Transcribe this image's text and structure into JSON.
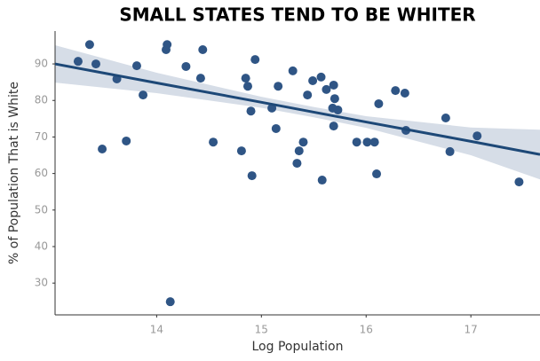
{
  "chart_data": {
    "type": "scatter",
    "title": "SMALL STATES TEND TO BE WHITER",
    "x_label": "Log Population",
    "y_label": "% of Population That is White",
    "xlim": [
      13.03,
      17.66
    ],
    "ylim": [
      21.3,
      99
    ],
    "xticks": [
      14,
      15,
      16,
      17
    ],
    "yticks": [
      30,
      40,
      50,
      60,
      70,
      80,
      90
    ],
    "color": "#2f5585",
    "x": [
      13.25,
      13.36,
      13.42,
      13.48,
      13.62,
      13.71,
      13.81,
      13.87,
      14.09,
      14.1,
      14.13,
      14.28,
      14.42,
      14.44,
      14.54,
      14.81,
      14.85,
      14.87,
      14.9,
      14.91,
      14.94,
      15.1,
      15.14,
      15.16,
      15.3,
      15.34,
      15.36,
      15.4,
      15.44,
      15.49,
      15.57,
      15.58,
      15.62,
      15.68,
      15.69,
      15.69,
      15.7,
      15.73,
      15.91,
      16.01,
      16.08,
      16.1,
      16.12,
      16.28,
      16.37,
      16.38,
      16.76,
      16.8,
      17.06,
      17.46
    ],
    "values": [
      90.7,
      95.3,
      90,
      66.7,
      85.9,
      68.9,
      89.5,
      81.5,
      93.9,
      95.3,
      24.9,
      89.3,
      86.1,
      93.9,
      68.6,
      66.2,
      86.1,
      83.9,
      77.1,
      59.4,
      91.2,
      77.9,
      72.3,
      83.9,
      88.1,
      62.8,
      66.2,
      68.6,
      81.5,
      85.4,
      86.4,
      58.2,
      83,
      77.9,
      73,
      84.2,
      80.5,
      77.4,
      68.6,
      68.6,
      68.6,
      59.9,
      79.1,
      82.7,
      82,
      71.8,
      75.2,
      66,
      70.3,
      57.7
    ],
    "fit": {
      "color": "#1d4877",
      "band_color": "#d6dde7",
      "x": [
        13.03,
        14,
        15,
        15.5,
        16,
        17,
        17.66
      ],
      "values": [
        90,
        84.8,
        79.5,
        76.8,
        74.1,
        68.8,
        65.2
      ],
      "lower": [
        84.9,
        82,
        78,
        75.4,
        72.5,
        65,
        58.4
      ],
      "upper": [
        95.1,
        87.6,
        81,
        78.2,
        75.7,
        72.6,
        72
      ]
    }
  }
}
